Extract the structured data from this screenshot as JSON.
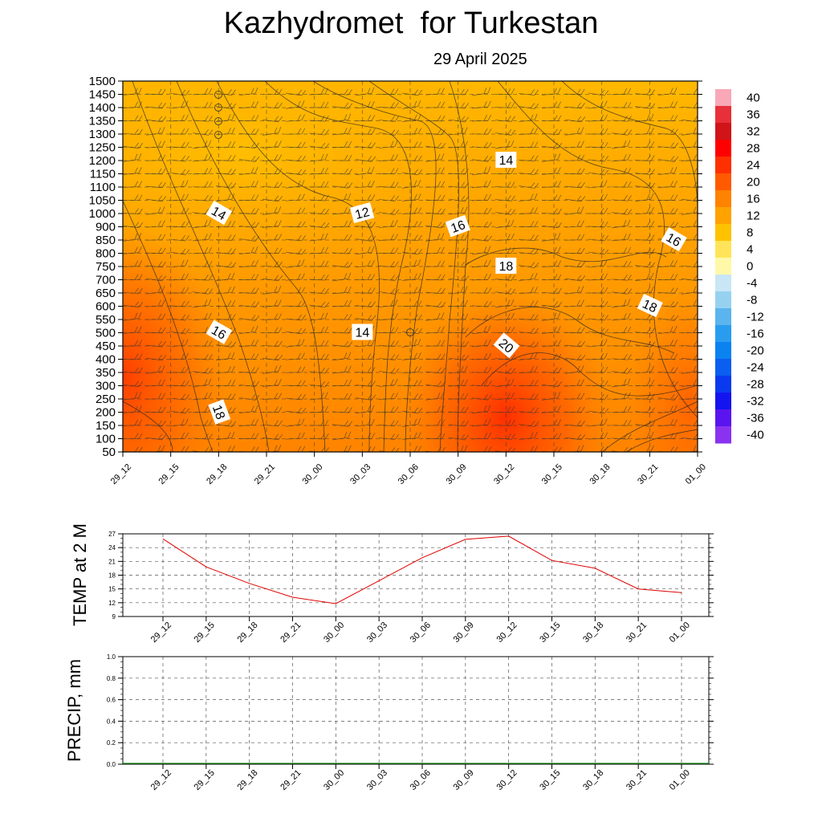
{
  "header": {
    "title": "Kazhydromet  for Turkestan",
    "date": "29 April 2025"
  },
  "colors": {
    "temp_line": "#e00000",
    "precip_line": "#1a8a1a",
    "grid": "#555555",
    "contour": "#222222"
  },
  "time_labels": [
    "29_12",
    "29_15",
    "29_18",
    "29_21",
    "30_00",
    "30_03",
    "30_06",
    "30_09",
    "30_12",
    "30_15",
    "30_18",
    "30_21",
    "01_00"
  ],
  "chart_data": [
    {
      "type": "heatmap",
      "ylabel": "",
      "xlabel": "",
      "x": [
        "29_12",
        "29_15",
        "29_18",
        "29_21",
        "30_00",
        "30_03",
        "30_06",
        "30_09",
        "30_12",
        "30_15",
        "30_18",
        "30_21",
        "01_00"
      ],
      "y_ticks": [
        "1500",
        "1450",
        "1400",
        "1350",
        "1300",
        "1250",
        "1200",
        "1150",
        "1100",
        "1050",
        "1000",
        "900",
        "850",
        "800",
        "750",
        "700",
        "650",
        "600",
        "550",
        "500",
        "450",
        "400",
        "350",
        "300",
        "250",
        "200",
        "150",
        "100",
        "50"
      ],
      "colorbar": {
        "labels": [
          "40",
          "36",
          "32",
          "28",
          "24",
          "20",
          "16",
          "12",
          "8",
          "4",
          "0",
          "-4",
          "-8",
          "-12",
          "-16",
          "-20",
          "-24",
          "-28",
          "-32",
          "-36",
          "-40"
        ],
        "colors": [
          "#f9a8b8",
          "#e8303a",
          "#d01418",
          "#ff0000",
          "#ff3000",
          "#ff5a00",
          "#ff8200",
          "#ffa200",
          "#ffc200",
          "#ffe45a",
          "#fff8a8",
          "#c8e6f6",
          "#96d2f0",
          "#5ab4ee",
          "#2a9cf0",
          "#0a82f0",
          "#0a5ef0",
          "#0a3af0",
          "#1414f0",
          "#5a14f0",
          "#8a32f0"
        ]
      },
      "contour_labels": [
        {
          "text": "14",
          "x": "29_18",
          "level": "1000"
        },
        {
          "text": "12",
          "x": "30_03",
          "level": "1000"
        },
        {
          "text": "14",
          "x": "30_12",
          "level": "1200"
        },
        {
          "text": "16",
          "x": "30_09",
          "level": "900"
        },
        {
          "text": "16",
          "x": "01_00",
          "level": "850"
        },
        {
          "text": "18",
          "x": "30_12",
          "level": "750"
        },
        {
          "text": "18",
          "x": "30_21",
          "level": "600"
        },
        {
          "text": "16",
          "x": "29_18",
          "level": "500"
        },
        {
          "text": "14",
          "x": "30_03",
          "level": "500"
        },
        {
          "text": "20",
          "x": "30_12",
          "level": "450"
        },
        {
          "text": "18",
          "x": "29_18",
          "level": "200"
        }
      ]
    },
    {
      "type": "line",
      "ylabel": "TEMP at 2 M",
      "x": [
        "29_12",
        "29_15",
        "29_18",
        "29_21",
        "30_00",
        "30_03",
        "30_06",
        "30_09",
        "30_12",
        "30_15",
        "30_18",
        "30_21",
        "01_00"
      ],
      "y_ticks": [
        "27",
        "24",
        "21",
        "18",
        "15",
        "12",
        "9"
      ],
      "ylim": [
        9,
        27
      ],
      "series": [
        {
          "values": [
            25.9,
            19.8,
            16.2,
            13.2,
            11.8,
            16.8,
            21.8,
            25.8,
            26.5,
            21.2,
            19.5,
            15.0,
            14.2
          ]
        }
      ]
    },
    {
      "type": "line",
      "ylabel": "PRECIP, mm",
      "x": [
        "29_12",
        "29_15",
        "29_18",
        "29_21",
        "30_00",
        "30_03",
        "30_06",
        "30_09",
        "30_12",
        "30_15",
        "30_18",
        "30_21",
        "01_00"
      ],
      "y_ticks": [
        "1.0",
        "0.8",
        "0.6",
        "0.4",
        "0.2",
        "0.0"
      ],
      "ylim": [
        0,
        1
      ],
      "series": [
        {
          "values": [
            0,
            0,
            0,
            0,
            0,
            0,
            0,
            0,
            0,
            0,
            0,
            0,
            0
          ]
        }
      ]
    }
  ]
}
